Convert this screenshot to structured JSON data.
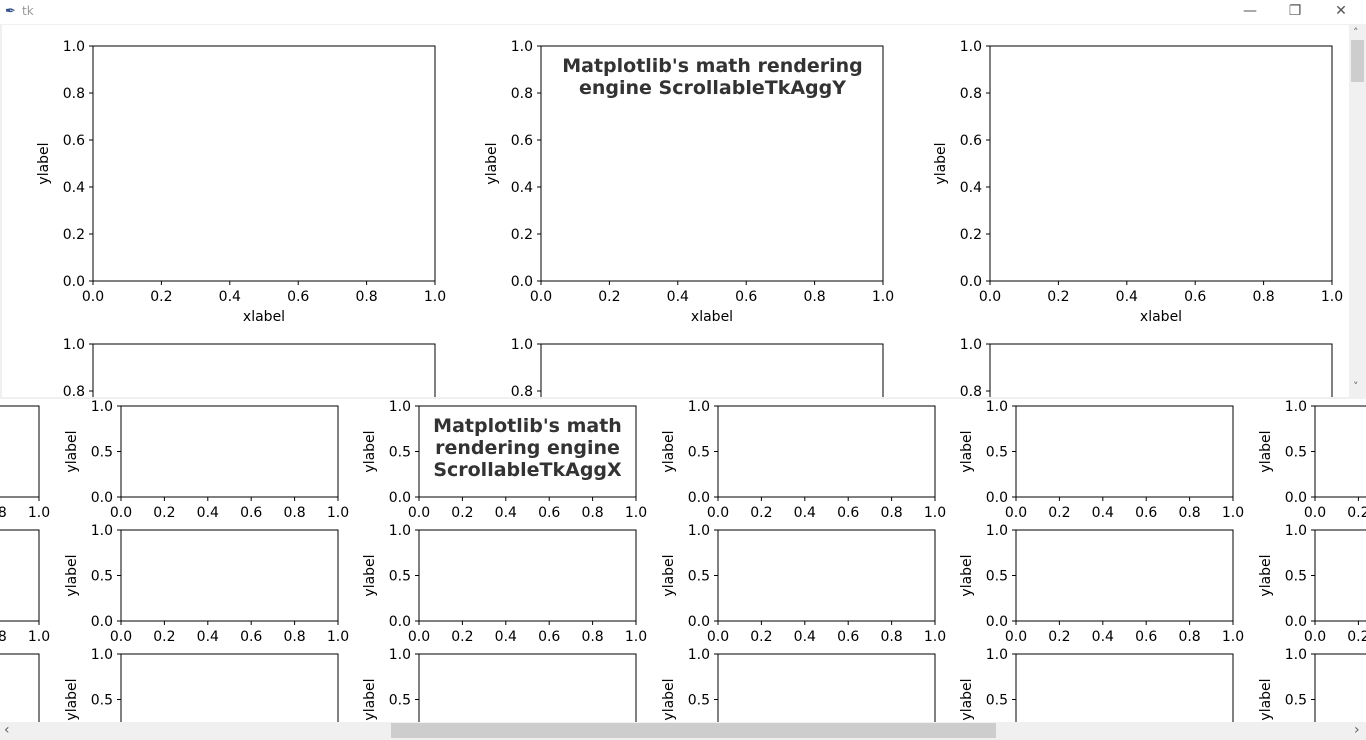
{
  "window": {
    "title": "tk",
    "minimize": "—",
    "restore": "❐",
    "close": "✕"
  },
  "top_figure": {
    "suptitle": "Matplotlib's math rendering engine ScrollableTkAggY",
    "xlabel": "xlabel",
    "ylabel": "ylabel",
    "xticks": [
      "0.0",
      "0.2",
      "0.4",
      "0.6",
      "0.8",
      "1.0"
    ],
    "yticks": [
      "0.0",
      "0.2",
      "0.4",
      "0.6",
      "0.8",
      "1.0"
    ]
  },
  "bottom_figure": {
    "suptitle": "Matplotlib's math rendering engine ScrollableTkAggX",
    "ylabel": "ylabel",
    "xticks": [
      "0.0",
      "0.2",
      "0.4",
      "0.6",
      "0.8",
      "1.0"
    ],
    "yticks": [
      "0.0",
      "0.5",
      "1.0"
    ]
  },
  "scrollbars": {
    "up": "˄",
    "down": "˅",
    "left": "‹",
    "right": "›"
  }
}
